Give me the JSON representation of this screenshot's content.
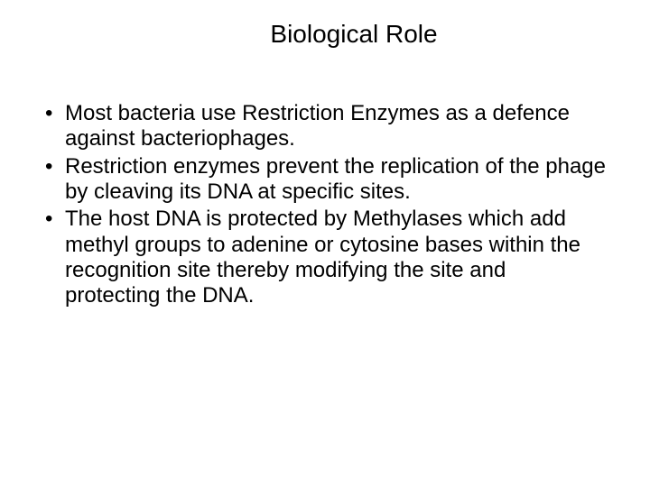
{
  "slide": {
    "title": "Biological Role",
    "bullets": [
      "Most bacteria use Restriction Enzymes as a defence against bacteriophages.",
      "Restriction enzymes prevent the replication of the phage by cleaving its DNA at specific sites.",
      "The host DNA is protected by Methylases which add methyl groups to adenine or cytosine bases within the recognition site thereby modifying the site and protecting the DNA."
    ],
    "background_color": "#ffffff",
    "text_color": "#000000",
    "title_fontsize": 28,
    "body_fontsize": 24
  }
}
